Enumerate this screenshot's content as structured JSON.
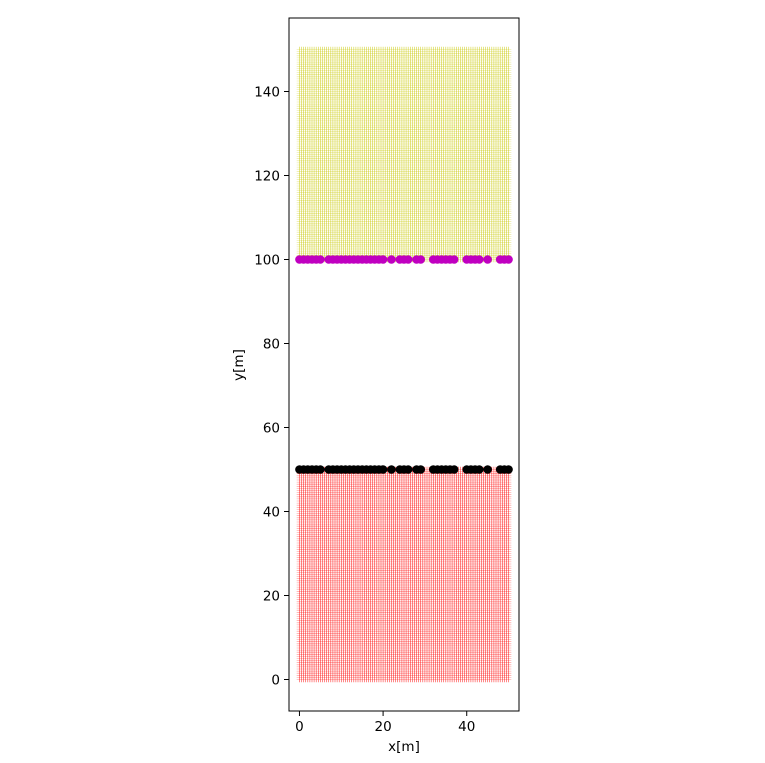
{
  "chart_data": {
    "type": "scatter",
    "title": "",
    "xlabel": "x[m]",
    "ylabel": "y[m]",
    "xlim": [
      -2.5,
      52.5
    ],
    "ylim": [
      -7.5,
      157.5
    ],
    "xticks": [
      0,
      20,
      40
    ],
    "yticks": [
      0,
      20,
      40,
      60,
      80,
      100,
      120,
      140
    ],
    "grid": false,
    "legend": "none",
    "series": [
      {
        "marker": "plus",
        "color": "#ff0000",
        "x_range": [
          0,
          50
        ],
        "y_range": [
          0,
          50
        ],
        "x_spacing": 0.5,
        "y_spacing": 0.5
      },
      {
        "marker": "plus",
        "color": "#c8c800",
        "x_range": [
          0,
          50
        ],
        "y_range": [
          100,
          150
        ],
        "x_spacing": 0.5,
        "y_spacing": 0.5
      },
      {
        "marker": "circle",
        "color": "#000000",
        "y": 50,
        "x": [
          0,
          1,
          2,
          3,
          4,
          5,
          7,
          8,
          9,
          10,
          11,
          12,
          13,
          14,
          15,
          16,
          17,
          18,
          19,
          20,
          22,
          24,
          25,
          26,
          28,
          29,
          32,
          33,
          34,
          35,
          36,
          37,
          40,
          41,
          42,
          43,
          45,
          48,
          49,
          50
        ]
      },
      {
        "marker": "circle",
        "color": "#c000c0",
        "y": 100,
        "x": [
          0,
          1,
          2,
          3,
          4,
          5,
          7,
          8,
          9,
          10,
          11,
          12,
          13,
          14,
          15,
          16,
          17,
          18,
          19,
          20,
          22,
          24,
          25,
          26,
          28,
          29,
          32,
          33,
          34,
          35,
          36,
          37,
          40,
          41,
          42,
          43,
          45,
          48,
          49,
          50
        ]
      }
    ]
  }
}
